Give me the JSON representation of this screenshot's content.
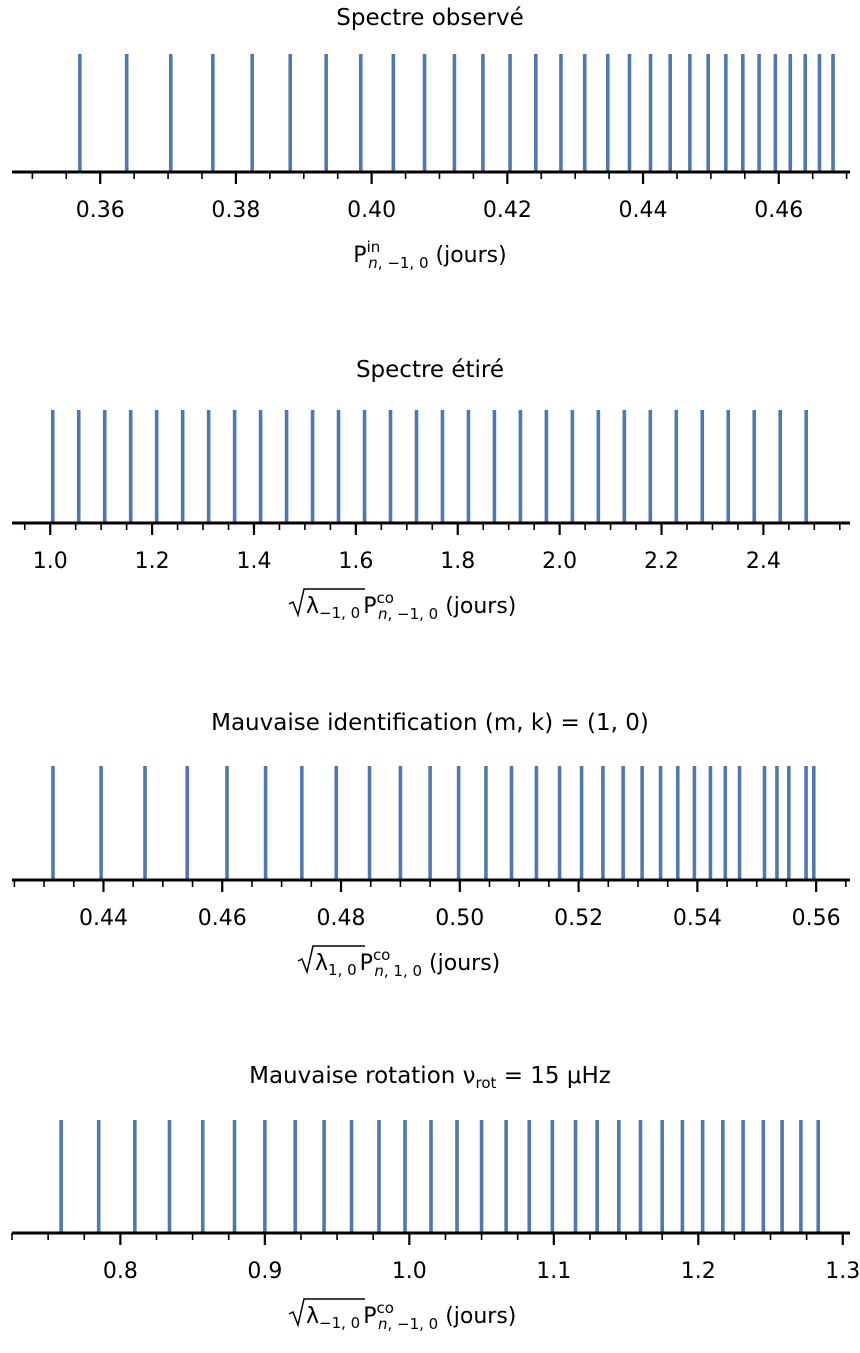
{
  "colors": {
    "line": "#4e79b0",
    "axis": "#000000"
  },
  "chart_data": [
    {
      "type": "spectrum",
      "title": "Spectre observé",
      "xlabel": {
        "base": "P",
        "sup": "in",
        "sub_italic": "n",
        "sub_rest": ", −1, 0",
        "units": " (jours)"
      },
      "xlim": [
        0.347,
        0.4705
      ],
      "major_ticks": [
        0.36,
        0.38,
        0.4,
        0.42,
        0.44,
        0.46
      ],
      "tick_labels": [
        "0.36",
        "0.38",
        "0.40",
        "0.42",
        "0.44",
        "0.46"
      ],
      "minor_step": 0.005,
      "values": [
        0.357,
        0.3639,
        0.3704,
        0.3766,
        0.3824,
        0.388,
        0.3933,
        0.3984,
        0.4032,
        0.4078,
        0.4122,
        0.4164,
        0.4204,
        0.4242,
        0.4279,
        0.4314,
        0.4348,
        0.438,
        0.4411,
        0.444,
        0.4469,
        0.4496,
        0.4522,
        0.4547,
        0.4571,
        0.4595,
        0.4617,
        0.4639,
        0.466,
        0.468
      ]
    },
    {
      "type": "spectrum",
      "title": "Spectre étiré",
      "xlabel": {
        "sqrt": true,
        "lambda_sub": "−1, 0",
        "base": "P",
        "sup": "co",
        "sub_italic": "n",
        "sub_rest": ", −1, 0",
        "units": "  (jours)"
      },
      "xlim": [
        0.925,
        2.57
      ],
      "major_ticks": [
        1.0,
        1.2,
        1.4,
        1.6,
        1.8,
        2.0,
        2.2,
        2.4
      ],
      "tick_labels": [
        "1.0",
        "1.2",
        "1.4",
        "1.6",
        "1.8",
        "2.0",
        "2.2",
        "2.4"
      ],
      "minor_step": 0.05,
      "values": [
        1.005,
        1.056,
        1.107,
        1.158,
        1.209,
        1.26,
        1.311,
        1.362,
        1.413,
        1.464,
        1.515,
        1.566,
        1.617,
        1.668,
        1.719,
        1.77,
        1.821,
        1.872,
        1.923,
        1.974,
        2.025,
        2.076,
        2.127,
        2.178,
        2.229,
        2.28,
        2.331,
        2.382,
        2.433,
        2.484
      ]
    },
    {
      "type": "spectrum",
      "title": "Mauvaise identification (m, k) = (1, 0)",
      "xlabel": {
        "sqrt": true,
        "lambda_sub": "1, 0",
        "base": "P",
        "sup": "co",
        "sub_italic": "n",
        "sub_rest": ", 1, 0",
        "units": "  (jours)"
      },
      "xlim": [
        0.4246,
        0.5657
      ],
      "major_ticks": [
        0.44,
        0.46,
        0.48,
        0.5,
        0.52,
        0.54,
        0.56
      ],
      "tick_labels": [
        "0.44",
        "0.46",
        "0.48",
        "0.50",
        "0.52",
        "0.54",
        "0.56"
      ],
      "minor_step": 0.005,
      "values": [
        0.4315,
        0.4396,
        0.447,
        0.4541,
        0.4608,
        0.4673,
        0.4734,
        0.4792,
        0.4848,
        0.49,
        0.495,
        0.4998,
        0.5044,
        0.5087,
        0.5129,
        0.5168,
        0.5205,
        0.5241,
        0.5275,
        0.5307,
        0.5338,
        0.5367,
        0.5395,
        0.5422,
        0.5447,
        0.5471,
        0.5513,
        0.5534,
        0.5554,
        0.5583,
        0.5596
      ]
    },
    {
      "type": "spectrum",
      "title": "Mauvaise rotation ν_rot = 15 μHz",
      "title_parts": {
        "pre": "Mauvaise rotation ν",
        "sub": "rot",
        "post": " = 15 μHz"
      },
      "xlabel": {
        "sqrt": true,
        "lambda_sub": "−1, 0",
        "base": "P",
        "sup": "co",
        "sub_italic": "n",
        "sub_rest": ", −1, 0",
        "units": "  (jours)"
      },
      "xlim": [
        0.725,
        1.305
      ],
      "major_ticks": [
        0.8,
        0.9,
        1.0,
        1.1,
        1.2,
        1.3
      ],
      "tick_labels": [
        "0.8",
        "0.9",
        "1.0",
        "1.1",
        "1.2",
        "1.3"
      ],
      "minor_step": 0.025,
      "values": [
        0.759,
        0.785,
        0.81,
        0.834,
        0.857,
        0.879,
        0.9,
        0.921,
        0.941,
        0.96,
        0.979,
        0.997,
        1.015,
        1.033,
        1.05,
        1.067,
        1.083,
        1.099,
        1.115,
        1.13,
        1.145,
        1.16,
        1.175,
        1.189,
        1.203,
        1.217,
        1.231,
        1.245,
        1.258,
        1.271,
        1.283
      ]
    }
  ]
}
